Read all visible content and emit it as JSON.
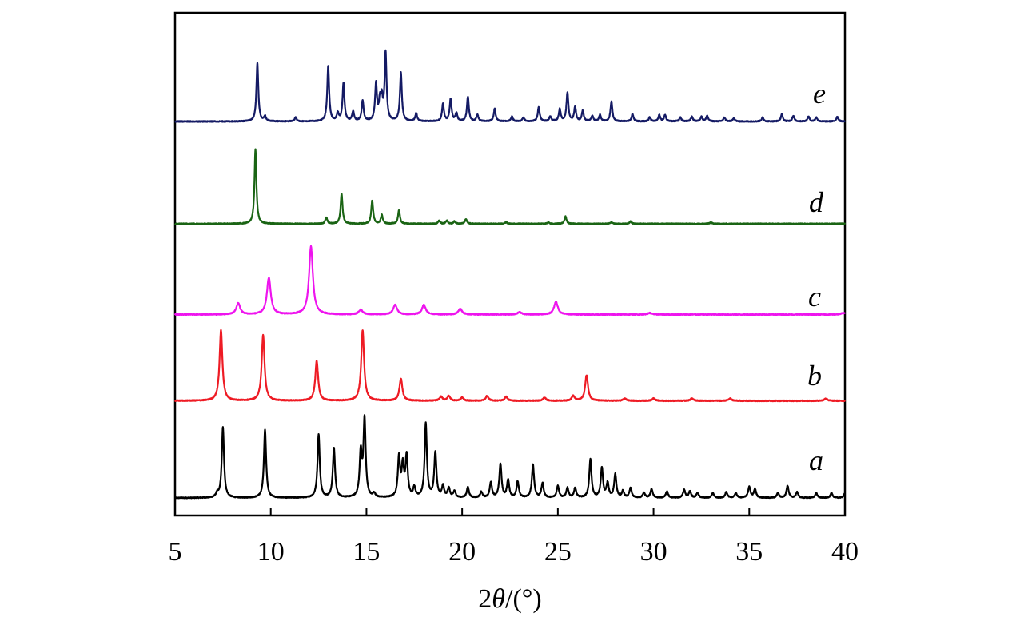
{
  "chart_data": {
    "type": "line",
    "title": "",
    "xlabel": {
      "prefix": "2",
      "theta": "θ",
      "suffix": "/(°)"
    },
    "ylabel": "",
    "xlim": [
      5,
      40
    ],
    "xticks": [
      5,
      10,
      15,
      20,
      25,
      30,
      35,
      40
    ],
    "x_tick_labels": [
      "5",
      "10",
      "15",
      "20",
      "25",
      "30",
      "35",
      "40"
    ],
    "grid": false,
    "stacked_offset": true,
    "y_units": "relative intensity (arbitrary, vertically offset)",
    "series": [
      {
        "name": "a",
        "color": "#000000",
        "baseline": 0,
        "peak_width": 0.07,
        "peaks": [
          [
            7.2,
            0.05
          ],
          [
            7.5,
            0.88
          ],
          [
            9.7,
            0.85
          ],
          [
            12.5,
            0.79
          ],
          [
            13.3,
            0.62
          ],
          [
            14.7,
            0.55
          ],
          [
            14.9,
            0.97
          ],
          [
            15.4,
            0.05
          ],
          [
            16.7,
            0.5
          ],
          [
            16.9,
            0.38
          ],
          [
            17.1,
            0.51
          ],
          [
            17.5,
            0.12
          ],
          [
            18.1,
            0.92
          ],
          [
            18.6,
            0.56
          ],
          [
            19.0,
            0.14
          ],
          [
            19.3,
            0.12
          ],
          [
            19.6,
            0.08
          ],
          [
            20.3,
            0.13
          ],
          [
            21.0,
            0.07
          ],
          [
            21.5,
            0.19
          ],
          [
            22.0,
            0.42
          ],
          [
            22.4,
            0.22
          ],
          [
            22.9,
            0.2
          ],
          [
            23.7,
            0.41
          ],
          [
            24.2,
            0.18
          ],
          [
            25.0,
            0.15
          ],
          [
            25.5,
            0.12
          ],
          [
            25.9,
            0.12
          ],
          [
            26.7,
            0.48
          ],
          [
            27.3,
            0.37
          ],
          [
            27.6,
            0.18
          ],
          [
            28.0,
            0.29
          ],
          [
            28.4,
            0.08
          ],
          [
            28.8,
            0.12
          ],
          [
            29.5,
            0.06
          ],
          [
            29.9,
            0.11
          ],
          [
            30.7,
            0.08
          ],
          [
            31.6,
            0.1
          ],
          [
            31.9,
            0.08
          ],
          [
            32.3,
            0.06
          ],
          [
            33.1,
            0.06
          ],
          [
            33.8,
            0.07
          ],
          [
            34.3,
            0.06
          ],
          [
            35.0,
            0.14
          ],
          [
            35.3,
            0.11
          ],
          [
            36.5,
            0.06
          ],
          [
            37.0,
            0.15
          ],
          [
            37.5,
            0.07
          ],
          [
            38.5,
            0.06
          ],
          [
            39.3,
            0.06
          ],
          [
            40.0,
            0.06
          ]
        ]
      },
      {
        "name": "b",
        "color": "#ee1b24",
        "baseline": 1,
        "peak_width": 0.09,
        "peaks": [
          [
            7.4,
            0.88
          ],
          [
            9.6,
            0.82
          ],
          [
            12.4,
            0.5
          ],
          [
            14.8,
            0.88
          ],
          [
            16.8,
            0.28
          ],
          [
            18.9,
            0.05
          ],
          [
            19.3,
            0.06
          ],
          [
            20.0,
            0.04
          ],
          [
            21.3,
            0.06
          ],
          [
            22.3,
            0.05
          ],
          [
            24.3,
            0.04
          ],
          [
            25.8,
            0.06
          ],
          [
            26.5,
            0.32
          ],
          [
            28.5,
            0.03
          ],
          [
            30.0,
            0.03
          ],
          [
            32.0,
            0.03
          ],
          [
            34.0,
            0.03
          ],
          [
            39.0,
            0.03
          ]
        ]
      },
      {
        "name": "c",
        "color": "#ee14ee",
        "baseline": 2,
        "peak_width": 0.12,
        "peaks": [
          [
            8.3,
            0.14
          ],
          [
            9.9,
            0.46
          ],
          [
            12.1,
            0.85
          ],
          [
            14.7,
            0.06
          ],
          [
            16.5,
            0.12
          ],
          [
            18.0,
            0.12
          ],
          [
            19.9,
            0.07
          ],
          [
            23.0,
            0.03
          ],
          [
            24.9,
            0.16
          ],
          [
            29.8,
            0.02
          ],
          [
            39.9,
            0.02
          ]
        ]
      },
      {
        "name": "d",
        "color": "#1a6414",
        "baseline": 3,
        "peak_width": 0.06,
        "peaks": [
          [
            9.2,
            0.93
          ],
          [
            12.9,
            0.08
          ],
          [
            13.7,
            0.38
          ],
          [
            15.3,
            0.29
          ],
          [
            15.8,
            0.11
          ],
          [
            16.7,
            0.17
          ],
          [
            18.8,
            0.04
          ],
          [
            19.2,
            0.04
          ],
          [
            19.6,
            0.03
          ],
          [
            20.2,
            0.06
          ],
          [
            22.3,
            0.02
          ],
          [
            24.5,
            0.02
          ],
          [
            25.4,
            0.09
          ],
          [
            27.8,
            0.02
          ],
          [
            28.8,
            0.03
          ],
          [
            33.0,
            0.02
          ]
        ]
      },
      {
        "name": "e",
        "color": "#141a64",
        "baseline": 4,
        "peak_width": 0.06,
        "peaks": [
          [
            9.3,
            0.73
          ],
          [
            9.7,
            0.06
          ],
          [
            11.3,
            0.05
          ],
          [
            13.0,
            0.69
          ],
          [
            13.5,
            0.1
          ],
          [
            13.8,
            0.48
          ],
          [
            14.3,
            0.12
          ],
          [
            14.8,
            0.26
          ],
          [
            15.5,
            0.46
          ],
          [
            15.7,
            0.22
          ],
          [
            15.8,
            0.25
          ],
          [
            16.0,
            0.85
          ],
          [
            16.8,
            0.61
          ],
          [
            17.6,
            0.1
          ],
          [
            19.0,
            0.22
          ],
          [
            19.4,
            0.28
          ],
          [
            19.7,
            0.1
          ],
          [
            20.3,
            0.31
          ],
          [
            20.8,
            0.08
          ],
          [
            21.7,
            0.16
          ],
          [
            22.6,
            0.06
          ],
          [
            23.2,
            0.05
          ],
          [
            24.0,
            0.18
          ],
          [
            24.6,
            0.06
          ],
          [
            25.1,
            0.15
          ],
          [
            25.5,
            0.36
          ],
          [
            25.9,
            0.18
          ],
          [
            26.3,
            0.13
          ],
          [
            26.8,
            0.07
          ],
          [
            27.2,
            0.08
          ],
          [
            27.8,
            0.25
          ],
          [
            28.9,
            0.09
          ],
          [
            29.8,
            0.05
          ],
          [
            30.3,
            0.08
          ],
          [
            30.6,
            0.08
          ],
          [
            31.4,
            0.05
          ],
          [
            32.0,
            0.06
          ],
          [
            32.5,
            0.06
          ],
          [
            32.8,
            0.07
          ],
          [
            33.7,
            0.05
          ],
          [
            34.2,
            0.04
          ],
          [
            35.7,
            0.05
          ],
          [
            36.7,
            0.09
          ],
          [
            37.3,
            0.07
          ],
          [
            38.1,
            0.06
          ],
          [
            38.5,
            0.05
          ],
          [
            39.6,
            0.06
          ]
        ]
      }
    ]
  }
}
